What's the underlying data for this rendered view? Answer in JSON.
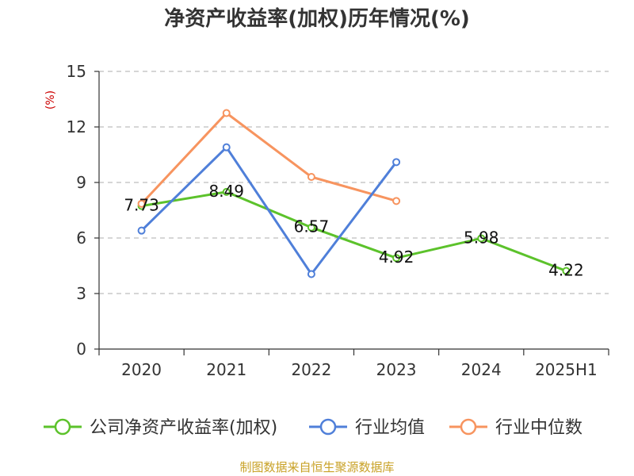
{
  "colors": {
    "series": [
      "#5cc22b",
      "#4f7fd9",
      "#f7945f"
    ],
    "grid": "#bdbdbd",
    "axis": "#333333",
    "source": "#c9a227",
    "ylabel": "#cc0000"
  },
  "chart_data": {
    "type": "line",
    "title": "净资产收益率(加权)历年情况(%)",
    "ylabel": "(%)",
    "xlabel": "",
    "categories": [
      "2020",
      "2021",
      "2022",
      "2023",
      "2024",
      "2025H1"
    ],
    "y_ticks": [
      "0",
      "3",
      "6",
      "9",
      "12",
      "15"
    ],
    "ylim": [
      0,
      15
    ],
    "grid": "horizontal dashed",
    "legend_position": "bottom",
    "series": [
      {
        "name": "公司净资产收益率(加权)",
        "values": [
          7.73,
          8.49,
          6.57,
          4.92,
          5.98,
          4.22
        ],
        "labels": [
          "7.73",
          "8.49",
          "6.57",
          "4.92",
          "5.98",
          "4.22"
        ]
      },
      {
        "name": "行业均值",
        "values": [
          6.4,
          10.9,
          4.05,
          10.1,
          null,
          null
        ]
      },
      {
        "name": "行业中位数",
        "values": [
          7.85,
          12.75,
          9.3,
          8.0,
          null,
          null
        ]
      }
    ],
    "source": "制图数据来自恒生聚源数据库"
  }
}
